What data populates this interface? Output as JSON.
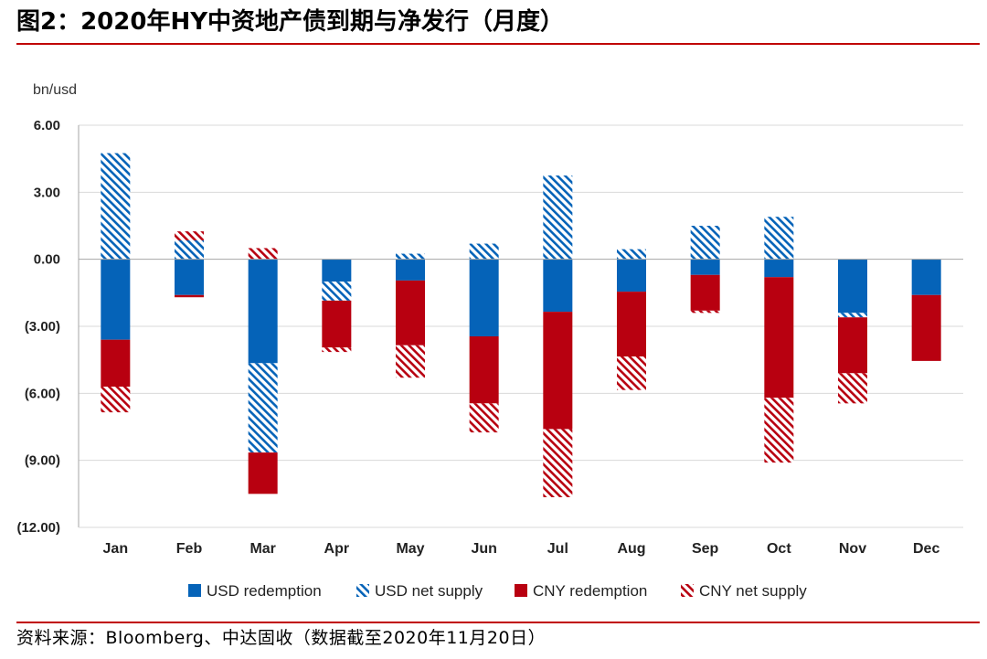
{
  "figure": {
    "title": "图2：2020年HY中资地产债到期与净发行（月度）",
    "source": "资料来源：Bloomberg、中达固收（数据截至2020年11月20日）"
  },
  "colors": {
    "usd": "#0563b8",
    "cny": "#b80010",
    "grid": "#d9d9d9",
    "axis": "#a6a6a6",
    "rule": "#c00000"
  },
  "chart_data": {
    "type": "bar",
    "stacked": true,
    "unit_label": "bn/usd",
    "ylim": [
      -12,
      6
    ],
    "ytick_values": [
      6,
      3,
      0,
      -3,
      -6,
      -9,
      -12
    ],
    "ytick_labels": [
      "6.00",
      "3.00",
      "0.00",
      "(3.00)",
      "(6.00)",
      "(9.00)",
      "(12.00)"
    ],
    "grid": true,
    "legend_position": "bottom",
    "categories": [
      "Jan",
      "Feb",
      "Mar",
      "Apr",
      "May",
      "Jun",
      "Jul",
      "Aug",
      "Sep",
      "Oct",
      "Nov",
      "Dec"
    ],
    "series": [
      {
        "name": "USD redemption",
        "key": "usd_red",
        "pattern": "solid",
        "color_key": "usd",
        "values": [
          -3.6,
          -1.6,
          -4.65,
          -1.0,
          -0.95,
          -3.45,
          -2.35,
          -1.45,
          -0.7,
          -0.8,
          -2.4,
          -1.6
        ]
      },
      {
        "name": "USD net supply",
        "key": "usd_net",
        "pattern": "hatch",
        "color_key": "usd",
        "values": [
          4.75,
          0.85,
          -4.0,
          -0.85,
          0.25,
          0.7,
          3.75,
          0.45,
          1.5,
          1.9,
          -0.2,
          0
        ]
      },
      {
        "name": "CNY redemption",
        "key": "cny_red",
        "pattern": "solid",
        "color_key": "cny",
        "values": [
          -2.1,
          -0.1,
          -1.85,
          -2.1,
          -2.9,
          -3.0,
          -5.25,
          -2.9,
          -1.6,
          -5.4,
          -2.5,
          -2.95
        ]
      },
      {
        "name": "CNY net supply",
        "key": "cny_net",
        "pattern": "hatch",
        "color_key": "cny",
        "values": [
          -1.15,
          0.4,
          0.5,
          -0.2,
          -1.45,
          -1.3,
          -3.05,
          -1.5,
          -0.1,
          -2.9,
          -1.35,
          0
        ]
      }
    ]
  }
}
